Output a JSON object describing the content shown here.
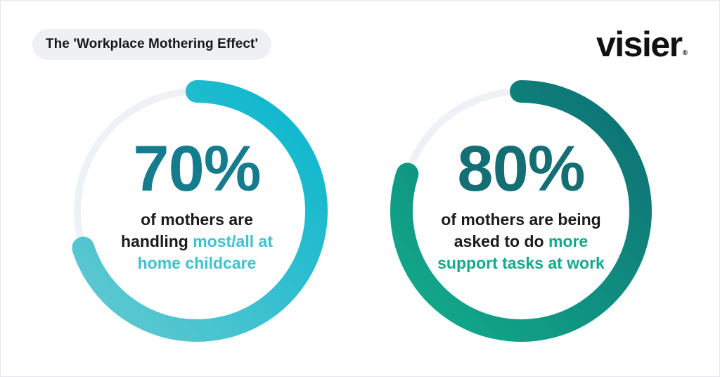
{
  "header": {
    "title": "The 'Workplace Mothering Effect'",
    "logo_text": "visier",
    "logo_mark": "®"
  },
  "chart_data": [
    {
      "type": "pie",
      "style": "donut-progress",
      "value": 70,
      "unit": "%",
      "label": "70%",
      "description_lines": [
        [
          {
            "text": "of mothers are",
            "highlight": false
          }
        ],
        [
          {
            "text": "handling ",
            "highlight": false
          },
          {
            "text": "most/all at",
            "highlight": true
          }
        ],
        [
          {
            "text": "home childcare",
            "highlight": true
          }
        ]
      ],
      "colors": {
        "start": "#63c9d1",
        "end": "#07b6cd",
        "track": "#eef1f5"
      }
    },
    {
      "type": "pie",
      "style": "donut-progress",
      "value": 80,
      "unit": "%",
      "label": "80%",
      "description_lines": [
        [
          {
            "text": "of mothers are being",
            "highlight": false
          }
        ],
        [
          {
            "text": "asked to do ",
            "highlight": false
          },
          {
            "text": "more",
            "highlight": true
          }
        ],
        [
          {
            "text": "support tasks at work",
            "highlight": true
          }
        ]
      ],
      "colors": {
        "start": "#12ad8b",
        "end": "#0e6e74",
        "track": "#eef1f5"
      }
    }
  ]
}
